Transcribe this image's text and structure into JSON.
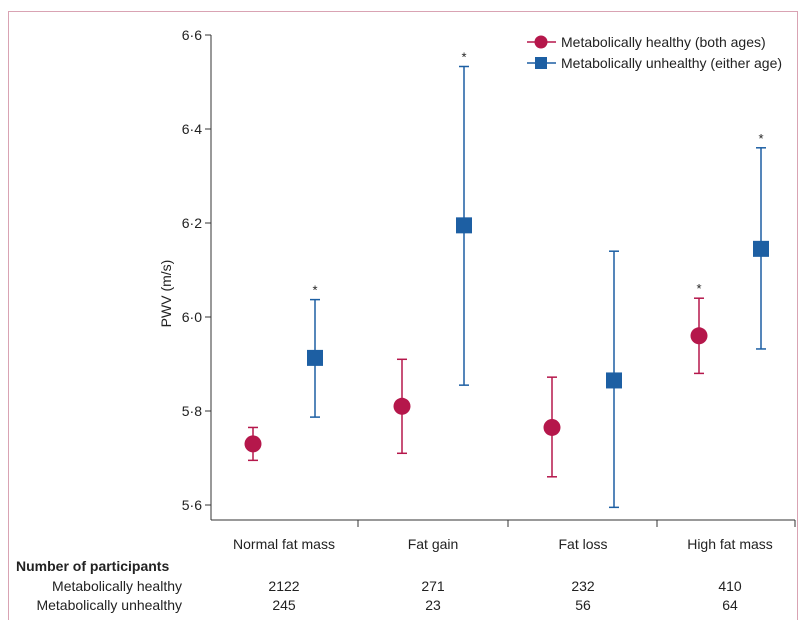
{
  "chart_data": {
    "type": "scatter",
    "ylabel": "PWV (m/s)",
    "ylim": [
      5.6,
      6.6
    ],
    "yticks": [
      5.6,
      5.8,
      6.0,
      6.2,
      6.4,
      6.6
    ],
    "ytick_labels": [
      "5·6",
      "5·8",
      "6·0",
      "6·2",
      "6·4",
      "6·6"
    ],
    "categories": [
      "Normal fat mass",
      "Fat gain",
      "Fat loss",
      "High fat mass"
    ],
    "legend_position": "top-right",
    "series": [
      {
        "name": "Metabolically healthy (both ages)",
        "marker": "circle",
        "color": "#b5174b",
        "values": [
          5.73,
          5.81,
          5.765,
          5.96
        ],
        "lower": [
          5.695,
          5.71,
          5.66,
          5.88
        ],
        "upper": [
          5.765,
          5.91,
          5.872,
          6.04
        ],
        "significant": [
          false,
          false,
          false,
          true
        ]
      },
      {
        "name": "Metabolically unhealthy (either age)",
        "marker": "square",
        "color": "#1d5fa3",
        "values": [
          5.913,
          6.195,
          5.865,
          6.145
        ],
        "lower": [
          5.787,
          5.855,
          5.595,
          5.932
        ],
        "upper": [
          6.037,
          6.533,
          6.14,
          6.36
        ],
        "significant": [
          true,
          true,
          false,
          true
        ]
      }
    ],
    "significance_marker": "*",
    "participants": {
      "title": "Number of participants",
      "rows": [
        {
          "label": "Metabolically healthy",
          "values": [
            "2122",
            "271",
            "232",
            "410"
          ]
        },
        {
          "label": "Metabolically unhealthy",
          "values": [
            "245",
            "23",
            "56",
            "64"
          ]
        }
      ]
    }
  }
}
